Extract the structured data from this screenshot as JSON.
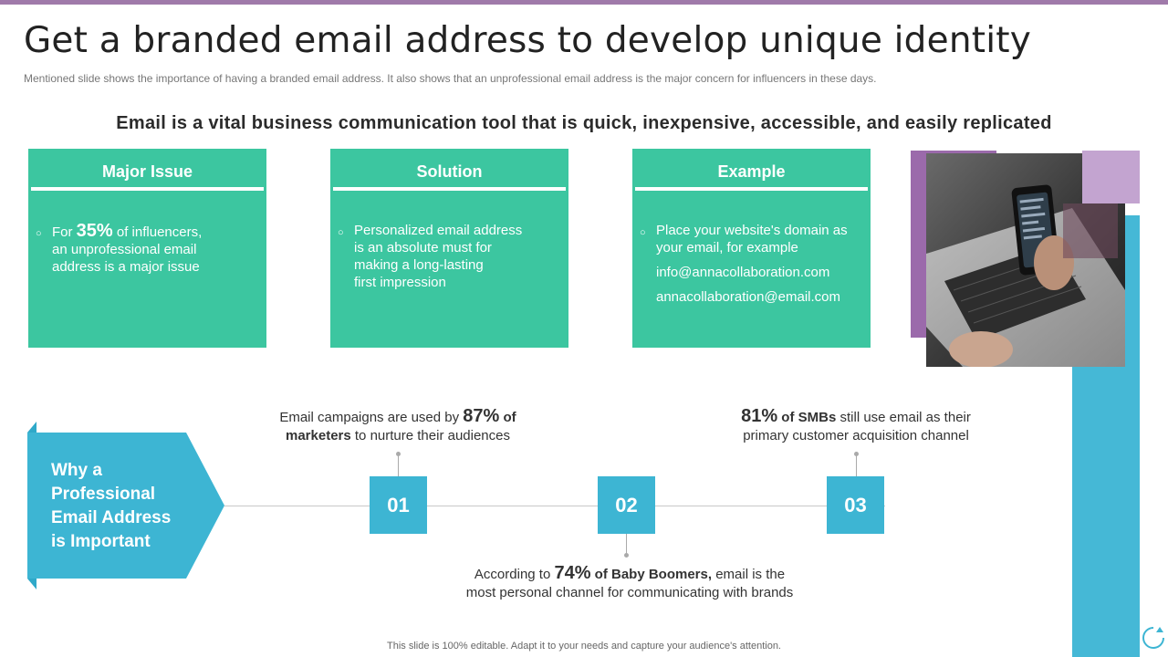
{
  "slide": {
    "title": "Get a branded email address to develop unique identity",
    "subtitle": "Mentioned slide shows the importance of having a branded  email address. It also shows that an unprofessional  email address is the major concern for influencers in these days.",
    "headline": "Email is a vital business communication tool that is quick, inexpensive, accessible, and easily replicated",
    "footer": "This slide is 100% editable. Adapt it to your needs and capture your audience's attention."
  },
  "cards": [
    {
      "heading": "Major Issue",
      "pre": "For ",
      "big": "35%",
      "post": " of influencers,",
      "lines": [
        "an unprofessional email",
        "address is a major issue"
      ]
    },
    {
      "heading": "Solution",
      "lines": [
        "Personalized email address",
        "is an absolute must for",
        "making a long-lasting",
        "first impression"
      ]
    },
    {
      "heading": "Example",
      "lines": [
        "Place your website's domain as",
        "your email, for example"
      ],
      "emails": [
        "info@annacollaboration.com",
        "annacollaboration@email.com"
      ]
    }
  ],
  "why": {
    "lines": [
      "Why a",
      "Professional",
      "Email Address",
      "is Important"
    ]
  },
  "steps": [
    {
      "number": "01",
      "pre": "Email campaigns are used by ",
      "big": "87%",
      "bold_after": " of",
      "bold_line2": "marketers",
      "rest_line2": " to nurture  their audiences"
    },
    {
      "number": "02",
      "pre": "According to ",
      "big": "74%",
      "bold_after": " of Baby Boomers,",
      "rest_line1": " email is the",
      "line2": "most personal channel for communicating with brands"
    },
    {
      "number": "03",
      "big": "81%",
      "bold_after": " of SMBs",
      "rest_line1": " still use email as their",
      "line2": "primary customer acquisition channel"
    }
  ],
  "colors": {
    "teal_card": "#3cc6a0",
    "step_blue": "#3db5d3",
    "accent_purple": "#9b6aab",
    "top_bar": "#a07aaa"
  }
}
